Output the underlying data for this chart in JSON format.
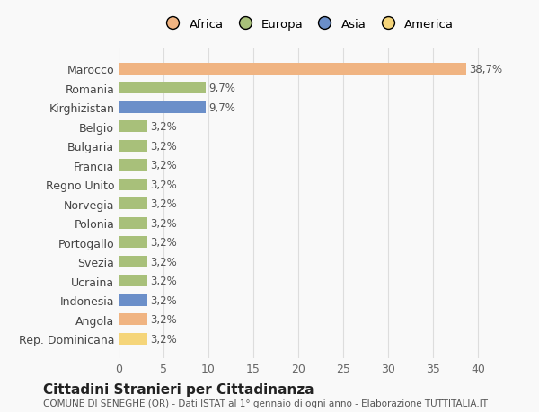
{
  "countries": [
    "Marocco",
    "Romania",
    "Kirghizistan",
    "Belgio",
    "Bulgaria",
    "Francia",
    "Regno Unito",
    "Norvegia",
    "Polonia",
    "Portogallo",
    "Svezia",
    "Ucraina",
    "Indonesia",
    "Angola",
    "Rep. Dominicana"
  ],
  "values": [
    38.7,
    9.7,
    9.7,
    3.2,
    3.2,
    3.2,
    3.2,
    3.2,
    3.2,
    3.2,
    3.2,
    3.2,
    3.2,
    3.2,
    3.2
  ],
  "labels": [
    "38,7%",
    "9,7%",
    "9,7%",
    "3,2%",
    "3,2%",
    "3,2%",
    "3,2%",
    "3,2%",
    "3,2%",
    "3,2%",
    "3,2%",
    "3,2%",
    "3,2%",
    "3,2%",
    "3,2%"
  ],
  "colors": [
    "#f0b482",
    "#a8c07a",
    "#6b8fc9",
    "#a8c07a",
    "#a8c07a",
    "#a8c07a",
    "#a8c07a",
    "#a8c07a",
    "#a8c07a",
    "#a8c07a",
    "#a8c07a",
    "#a8c07a",
    "#6b8fc9",
    "#f0b482",
    "#f5d57a"
  ],
  "legend_labels": [
    "Africa",
    "Europa",
    "Asia",
    "America"
  ],
  "legend_colors": [
    "#f0b482",
    "#a8c07a",
    "#6b8fc9",
    "#f5d57a"
  ],
  "title": "Cittadini Stranieri per Cittadinanza",
  "subtitle": "COMUNE DI SENEGHE (OR) - Dati ISTAT al 1° gennaio di ogni anno - Elaborazione TUTTITALIA.IT",
  "xlim": [
    0,
    42
  ],
  "xticks": [
    0,
    5,
    10,
    15,
    20,
    25,
    30,
    35,
    40
  ],
  "background_color": "#f9f9f9",
  "grid_color": "#dddddd"
}
